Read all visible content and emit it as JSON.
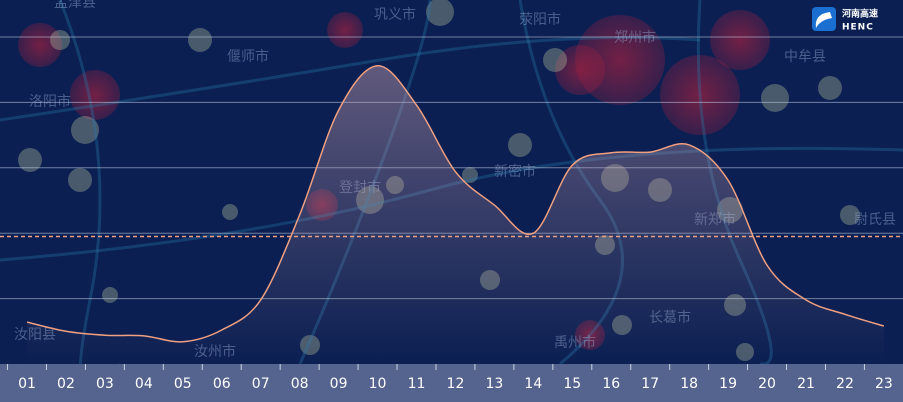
{
  "chart_data": {
    "type": "line",
    "categories": [
      "01",
      "02",
      "03",
      "04",
      "05",
      "06",
      "07",
      "08",
      "09",
      "10",
      "11",
      "12",
      "13",
      "14",
      "15",
      "16",
      "17",
      "18",
      "19",
      "20",
      "21",
      "22",
      "23"
    ],
    "values": [
      0.64,
      0.5,
      0.44,
      0.43,
      0.34,
      0.52,
      0.98,
      2.28,
      3.88,
      4.56,
      3.96,
      2.94,
      2.43,
      2.0,
      3.04,
      3.23,
      3.24,
      3.35,
      2.81,
      1.51,
      0.98,
      0.76,
      0.58
    ],
    "color": "#f0a080",
    "reference_line": 1.95,
    "ylim": [
      0,
      5
    ],
    "yticks": [
      1,
      2,
      3,
      4,
      5
    ],
    "grid": true
  },
  "logo": {
    "name": "河南高速",
    "abbr": "HENC"
  },
  "map_labels": [
    "孟津县",
    "偃师市",
    "洛阳市",
    "巩义市",
    "荥阳市",
    "郑州市",
    "中牟县",
    "登封市",
    "新密市",
    "新郑市",
    "尉氏县",
    "汝阳县",
    "汝州市",
    "禹州市",
    "长葛市"
  ]
}
